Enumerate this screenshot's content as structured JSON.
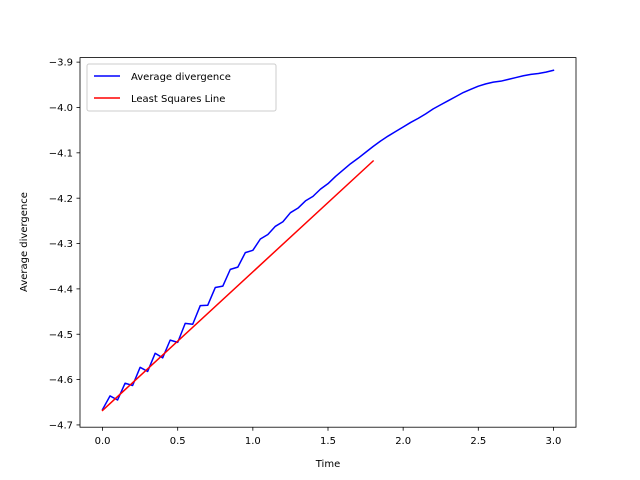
{
  "chart_data": {
    "type": "line",
    "title": "",
    "xlabel": "Time",
    "ylabel": "Average divergence",
    "xlim": [
      -0.15,
      3.15
    ],
    "ylim": [
      -4.705,
      -3.89
    ],
    "x_ticks": [
      0.0,
      0.5,
      1.0,
      1.5,
      2.0,
      2.5,
      3.0
    ],
    "x_tick_labels": [
      "0.0",
      "0.5",
      "1.0",
      "1.5",
      "2.0",
      "2.5",
      "3.0"
    ],
    "y_ticks": [
      -4.7,
      -4.6,
      -4.5,
      -4.4,
      -4.3,
      -4.2,
      -4.1,
      -4.0,
      -3.9
    ],
    "y_tick_labels": [
      "−4.7",
      "−4.6",
      "−4.5",
      "−4.4",
      "−4.3",
      "−4.2",
      "−4.1",
      "−4.0",
      "−3.9"
    ],
    "grid": false,
    "legend_position": "upper-left",
    "series": [
      {
        "name": "Average divergence",
        "color": "#0000ff",
        "x": [
          0.0,
          0.05,
          0.1,
          0.15,
          0.2,
          0.25,
          0.3,
          0.35,
          0.4,
          0.45,
          0.5,
          0.55,
          0.6,
          0.65,
          0.7,
          0.75,
          0.8,
          0.85,
          0.9,
          0.95,
          1.0,
          1.05,
          1.1,
          1.15,
          1.2,
          1.25,
          1.3,
          1.35,
          1.4,
          1.45,
          1.5,
          1.55,
          1.6,
          1.65,
          1.7,
          1.75,
          1.8,
          1.85,
          1.9,
          1.95,
          2.0,
          2.05,
          2.1,
          2.15,
          2.2,
          2.25,
          2.3,
          2.35,
          2.4,
          2.45,
          2.5,
          2.55,
          2.6,
          2.65,
          2.7,
          2.75,
          2.8,
          2.85,
          2.9,
          2.95,
          3.0
        ],
        "y": [
          -4.666,
          -4.636,
          -4.645,
          -4.608,
          -4.613,
          -4.573,
          -4.582,
          -4.542,
          -4.552,
          -4.513,
          -4.518,
          -4.476,
          -4.478,
          -4.437,
          -4.436,
          -4.397,
          -4.394,
          -4.357,
          -4.352,
          -4.32,
          -4.315,
          -4.29,
          -4.28,
          -4.262,
          -4.252,
          -4.232,
          -4.222,
          -4.206,
          -4.196,
          -4.18,
          -4.168,
          -4.152,
          -4.138,
          -4.124,
          -4.112,
          -4.099,
          -4.086,
          -4.074,
          -4.063,
          -4.053,
          -4.043,
          -4.033,
          -4.024,
          -4.014,
          -4.003,
          -3.994,
          -3.985,
          -3.976,
          -3.967,
          -3.96,
          -3.953,
          -3.948,
          -3.944,
          -3.942,
          -3.938,
          -3.934,
          -3.93,
          -3.927,
          -3.925,
          -3.922,
          -3.918
        ]
      },
      {
        "name": "Least Squares Line",
        "color": "#ff0000",
        "x": [
          0.0,
          1.8
        ],
        "y": [
          -4.668,
          -4.118
        ]
      }
    ]
  }
}
